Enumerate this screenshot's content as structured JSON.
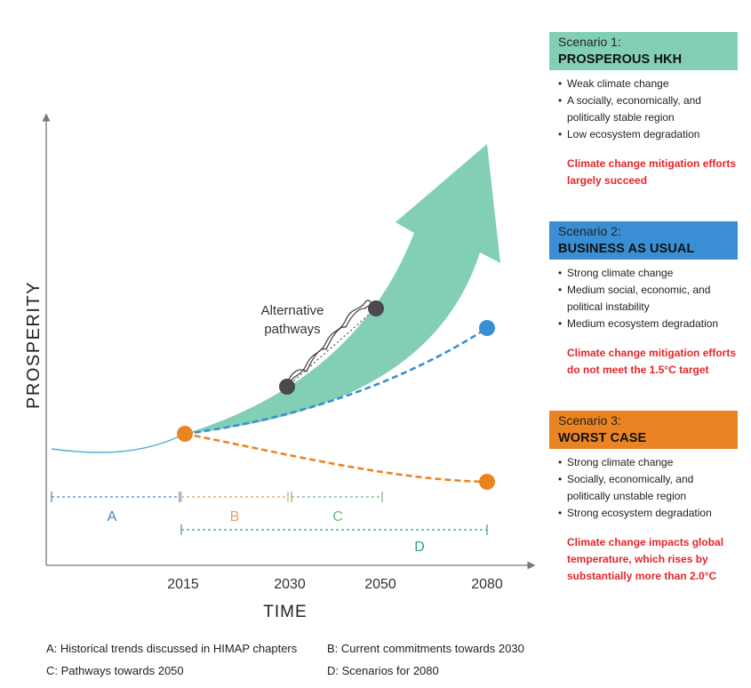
{
  "axes": {
    "y_label": "PROSPERITY",
    "x_label": "TIME",
    "ticks": [
      "2015",
      "2030",
      "2050",
      "2080"
    ]
  },
  "segments": {
    "a": "A",
    "b": "B",
    "c": "C",
    "d": "D"
  },
  "alternative_pathways": {
    "line1": "Alternative",
    "line2": "pathways"
  },
  "colors": {
    "green": "#82cfb6",
    "blue": "#3a8fd4",
    "orange": "#ea8423",
    "dark": "#4a4a4e",
    "red": "#e3262a"
  },
  "scenarios": [
    {
      "number": "Scenario 1:",
      "name": "PROSPEROUS HKH",
      "bullets": [
        "Weak climate change",
        "A socially, economically, and politically stable region",
        "Low ecosystem degradation"
      ],
      "mitigation": "Climate change mitigation efforts largely succeed"
    },
    {
      "number": "Scenario 2:",
      "name": "BUSINESS AS USUAL",
      "bullets": [
        "Strong climate change",
        "Medium social, economic, and political instability",
        "Medium ecosystem degradation"
      ],
      "mitigation": "Climate change mitigation efforts do not meet the 1.5°C target"
    },
    {
      "number": "Scenario 3:",
      "name": "WORST CASE",
      "bullets": [
        "Strong climate change",
        "Socially, economically, and politically unstable region",
        "Strong ecosystem degradation"
      ],
      "mitigation": "Climate change impacts global temperature, which rises by substantially more than 2.0°C"
    }
  ],
  "legend": {
    "a": "A: Historical trends discussed in HIMAP chapters",
    "b": "B: Current commitments towards 2030",
    "c": "C: Pathways towards 2050",
    "d": "D: Scenarios for 2080"
  }
}
